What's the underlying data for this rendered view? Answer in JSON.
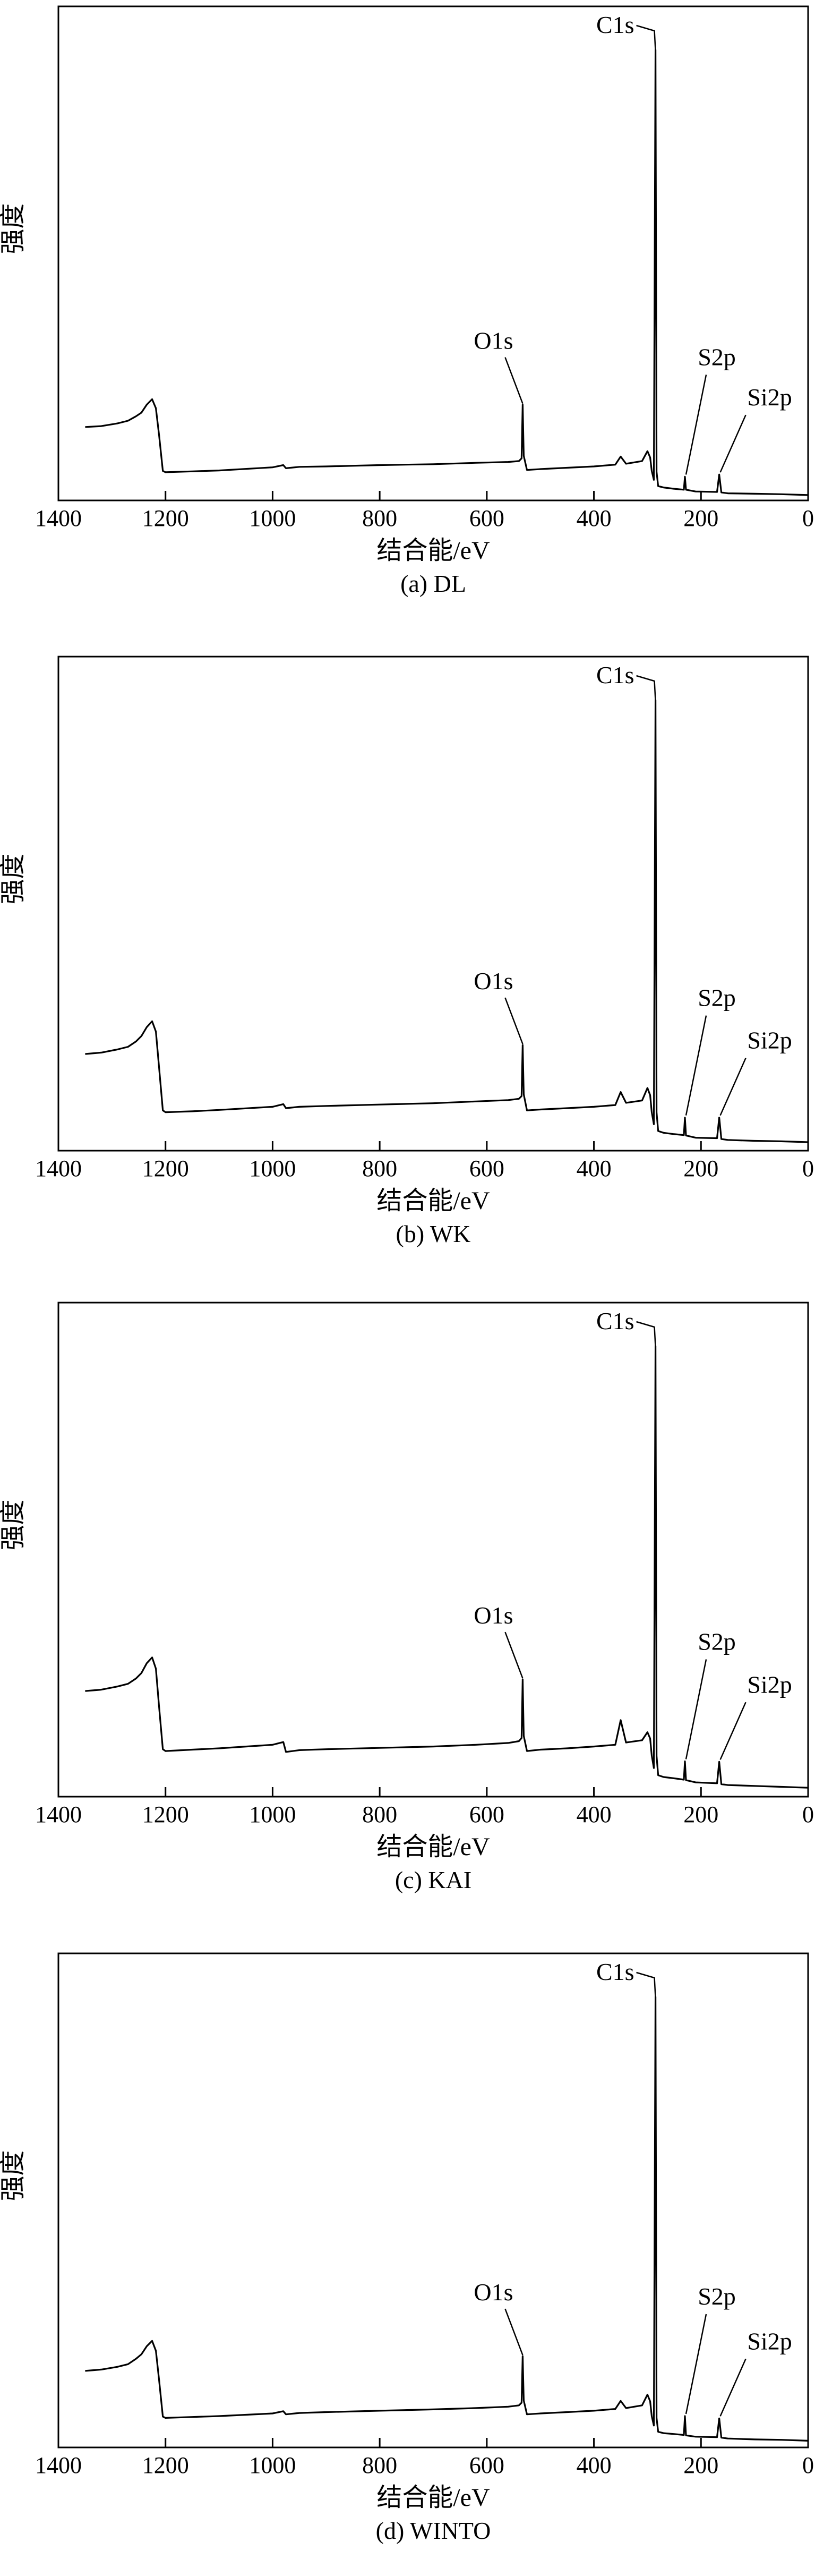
{
  "chart_data": [
    {
      "type": "line",
      "caption": "(a) DL",
      "xlabel": "结合能/eV",
      "ylabel": "强度",
      "xlim": [
        1400,
        0
      ],
      "x_reversed": true,
      "xticks": [
        1400,
        1200,
        1000,
        800,
        600,
        400,
        200,
        0
      ],
      "ylim": [
        0,
        100
      ],
      "y_ticks_shown": false,
      "series": [
        {
          "x": [
            1350,
            1320,
            1290,
            1270,
            1255,
            1245,
            1235,
            1225,
            1218,
            1212,
            1205,
            1200,
            1150,
            1100,
            1000,
            980,
            975,
            950,
            900,
            800,
            700,
            620,
            560,
            540,
            535,
            533,
            531,
            525,
            500,
            450,
            400,
            360,
            350,
            340,
            310,
            300,
            295,
            292,
            288,
            285,
            283,
            280,
            270,
            250,
            232,
            230,
            228,
            210,
            170,
            166,
            162,
            150,
            100,
            50,
            0
          ],
          "y": [
            15.8,
            16.0,
            16.6,
            17.2,
            18.2,
            19.0,
            20.8,
            22.0,
            20.0,
            14.0,
            6.0,
            5.7,
            5.9,
            6.1,
            6.8,
            7.3,
            6.6,
            6.9,
            7.0,
            7.3,
            7.5,
            7.8,
            8.0,
            8.2,
            8.8,
            20.8,
            9.4,
            6.2,
            6.4,
            6.7,
            7.0,
            7.4,
            9.2,
            7.6,
            8.2,
            10.4,
            9.0,
            6.0,
            4.0,
            100,
            5.8,
            2.6,
            2.3,
            2.0,
            1.8,
            4.7,
            1.8,
            1.4,
            1.3,
            5.2,
            1.2,
            1.0,
            0.9,
            0.8,
            0.6
          ]
        }
      ],
      "annotations": [
        {
          "text": "C1s",
          "x": 285
        },
        {
          "text": "O1s",
          "x": 533
        },
        {
          "text": "S2p",
          "x": 230
        },
        {
          "text": "Si2p",
          "x": 166
        }
      ]
    },
    {
      "type": "line",
      "caption": "(b) WK",
      "xlabel": "结合能/eV",
      "ylabel": "强度",
      "xlim": [
        1400,
        0
      ],
      "x_reversed": true,
      "xticks": [
        1400,
        1200,
        1000,
        800,
        600,
        400,
        200,
        0
      ],
      "ylim": [
        0,
        100
      ],
      "y_ticks_shown": false,
      "series": [
        {
          "x": [
            1350,
            1320,
            1290,
            1270,
            1255,
            1245,
            1235,
            1225,
            1218,
            1212,
            1205,
            1200,
            1150,
            1100,
            1000,
            980,
            975,
            950,
            900,
            800,
            700,
            620,
            560,
            540,
            535,
            533,
            531,
            525,
            500,
            450,
            400,
            360,
            350,
            340,
            310,
            300,
            295,
            292,
            288,
            285,
            283,
            280,
            270,
            250,
            232,
            230,
            228,
            210,
            170,
            166,
            162,
            150,
            100,
            50,
            0
          ],
          "y": [
            21.0,
            21.3,
            22.0,
            22.6,
            23.8,
            25.0,
            27.0,
            28.3,
            26.0,
            18.0,
            8.4,
            8.0,
            8.2,
            8.5,
            9.2,
            9.8,
            8.9,
            9.2,
            9.4,
            9.7,
            10.0,
            10.4,
            10.7,
            11.0,
            11.6,
            23.0,
            12.0,
            8.4,
            8.6,
            8.9,
            9.2,
            9.6,
            12.5,
            10.1,
            10.6,
            13.4,
            11.8,
            8.0,
            5.3,
            100,
            8.0,
            3.8,
            3.4,
            3.1,
            2.9,
            6.8,
            2.8,
            2.3,
            2.2,
            6.8,
            2.0,
            1.8,
            1.6,
            1.5,
            1.3
          ]
        }
      ],
      "annotations": [
        {
          "text": "C1s",
          "x": 285
        },
        {
          "text": "O1s",
          "x": 533
        },
        {
          "text": "S2p",
          "x": 230
        },
        {
          "text": "Si2p",
          "x": 166
        }
      ]
    },
    {
      "type": "line",
      "caption": "(c) KAI",
      "xlabel": "结合能/eV",
      "ylabel": "强度",
      "xlim": [
        1400,
        0
      ],
      "x_reversed": true,
      "xticks": [
        1400,
        1200,
        1000,
        800,
        600,
        400,
        200,
        0
      ],
      "ylim": [
        0,
        100
      ],
      "y_ticks_shown": false,
      "series": [
        {
          "x": [
            1350,
            1320,
            1290,
            1270,
            1255,
            1245,
            1235,
            1225,
            1218,
            1212,
            1205,
            1200,
            1150,
            1100,
            1000,
            980,
            975,
            950,
            900,
            800,
            700,
            620,
            560,
            540,
            535,
            533,
            531,
            525,
            500,
            450,
            400,
            360,
            350,
            340,
            310,
            300,
            295,
            292,
            288,
            285,
            283,
            280,
            270,
            250,
            232,
            230,
            228,
            210,
            170,
            166,
            162,
            150,
            100,
            50,
            0
          ],
          "y": [
            23.0,
            23.3,
            24.0,
            24.6,
            25.8,
            27.0,
            29.2,
            30.5,
            28.0,
            19.5,
            10.0,
            9.6,
            9.9,
            10.2,
            11.0,
            11.6,
            9.4,
            9.8,
            10.0,
            10.3,
            10.6,
            11.0,
            11.4,
            11.8,
            12.5,
            25.6,
            13.0,
            9.6,
            9.9,
            10.2,
            10.6,
            11.0,
            16.5,
            11.5,
            12.0,
            13.8,
            12.4,
            8.6,
            5.8,
            100,
            8.5,
            4.2,
            3.8,
            3.5,
            3.2,
            7.3,
            3.1,
            2.6,
            2.4,
            7.2,
            2.2,
            2.0,
            1.8,
            1.6,
            1.4
          ]
        }
      ],
      "annotations": [
        {
          "text": "C1s",
          "x": 285
        },
        {
          "text": "O1s",
          "x": 533
        },
        {
          "text": "S2p",
          "x": 230
        },
        {
          "text": "Si2p",
          "x": 166
        }
      ]
    },
    {
      "type": "line",
      "caption": "(d) WINTO",
      "xlabel": "结合能/eV",
      "ylabel": "强度",
      "xlim": [
        1400,
        0
      ],
      "x_reversed": true,
      "xticks": [
        1400,
        1200,
        1000,
        800,
        600,
        400,
        200,
        0
      ],
      "ylim": [
        0,
        100
      ],
      "y_ticks_shown": false,
      "series": [
        {
          "x": [
            1350,
            1320,
            1290,
            1270,
            1255,
            1245,
            1235,
            1225,
            1218,
            1212,
            1205,
            1200,
            1150,
            1100,
            1000,
            980,
            975,
            950,
            900,
            800,
            700,
            620,
            560,
            540,
            535,
            533,
            531,
            525,
            500,
            450,
            400,
            360,
            350,
            340,
            310,
            300,
            295,
            292,
            288,
            285,
            283,
            280,
            270,
            250,
            232,
            230,
            228,
            210,
            170,
            166,
            162,
            150,
            100,
            50,
            0
          ],
          "y": [
            16.5,
            16.8,
            17.4,
            18.0,
            19.2,
            20.2,
            22.0,
            23.2,
            21.0,
            14.5,
            6.3,
            6.0,
            6.2,
            6.4,
            7.0,
            7.5,
            6.8,
            7.1,
            7.3,
            7.6,
            7.9,
            8.2,
            8.5,
            8.8,
            9.4,
            19.8,
            9.9,
            6.8,
            7.0,
            7.3,
            7.6,
            8.0,
            9.8,
            8.2,
            8.8,
            11.2,
            9.7,
            6.4,
            4.3,
            100,
            6.0,
            2.9,
            2.6,
            2.4,
            2.2,
            6.4,
            2.1,
            1.8,
            1.7,
            5.9,
            1.6,
            1.4,
            1.2,
            1.1,
            0.9
          ]
        }
      ],
      "annotations": [
        {
          "text": "C1s",
          "x": 285
        },
        {
          "text": "O1s",
          "x": 533
        },
        {
          "text": "S2p",
          "x": 230
        },
        {
          "text": "Si2p",
          "x": 166
        }
      ]
    }
  ]
}
